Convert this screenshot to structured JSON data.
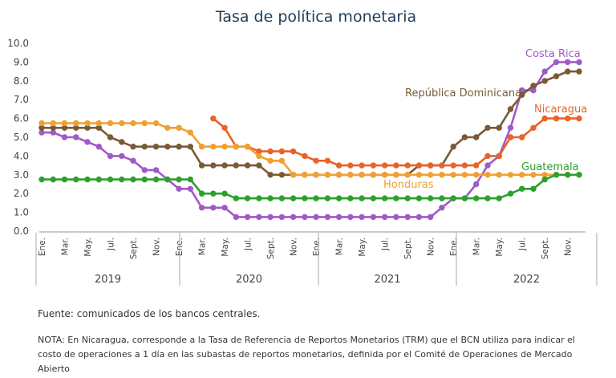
{
  "chart_data": {
    "type": "line",
    "title": "Tasa de política monetaria",
    "ylim": [
      0,
      10
    ],
    "yticks": [
      "0.0",
      "1.0",
      "2.0",
      "3.0",
      "4.0",
      "5.0",
      "6.0",
      "7.0",
      "8.0",
      "9.0",
      "10.0"
    ],
    "x": [
      "Ene.",
      "Feb.",
      "Mar.",
      "Abr.",
      "May.",
      "Jun.",
      "Jul.",
      "Ago.",
      "Sept.",
      "Oct.",
      "Nov.",
      "Dic.",
      "Ene.",
      "Feb.",
      "Mar.",
      "Abr.",
      "May.",
      "Jun.",
      "Jul.",
      "Ago.",
      "Sept.",
      "Oct.",
      "Nov.",
      "Dic.",
      "Ene.",
      "Feb.",
      "Mar.",
      "Abr.",
      "May.",
      "Jun.",
      "Jul.",
      "Ago.",
      "Sept.",
      "Oct.",
      "Nov.",
      "Dic.",
      "Ene.",
      "Feb.",
      "Mar.",
      "Abr.",
      "May.",
      "Jun.",
      "Jul.",
      "Ago.",
      "Sept.",
      "Oct.",
      "Nov.",
      "Dic."
    ],
    "xtick_labels": [
      "Ene.",
      "Mar.",
      "May.",
      "Jul.",
      "Sept.",
      "Nov.",
      "Ene.",
      "Mar.",
      "May.",
      "Jul.",
      "Sept.",
      "Nov.",
      "Ene.",
      "Mar.",
      "May.",
      "Jul.",
      "Sept.",
      "Nov.",
      "Ene.",
      "Mar.",
      "May.",
      "Jul.",
      "Sept.",
      "Nov."
    ],
    "years": [
      "2019",
      "2020",
      "2021",
      "2022"
    ],
    "grid": false,
    "legend": "inline labels at line ends",
    "series": [
      {
        "name": "Costa Rica",
        "color": "#a05ac8",
        "values": [
          5.25,
          5.25,
          5.0,
          5.0,
          4.75,
          4.5,
          4.0,
          4.0,
          3.75,
          3.25,
          3.25,
          2.75,
          2.25,
          2.25,
          1.25,
          1.25,
          1.25,
          0.75,
          0.75,
          0.75,
          0.75,
          0.75,
          0.75,
          0.75,
          0.75,
          0.75,
          0.75,
          0.75,
          0.75,
          0.75,
          0.75,
          0.75,
          0.75,
          0.75,
          0.75,
          1.25,
          1.75,
          1.75,
          2.5,
          3.5,
          4.0,
          5.5,
          7.5,
          7.5,
          8.5,
          9.0,
          9.0,
          9.0
        ]
      },
      {
        "name": "República Dominicana",
        "color": "#7a5a35",
        "values": [
          5.5,
          5.5,
          5.5,
          5.5,
          5.5,
          5.5,
          5.0,
          4.75,
          4.5,
          4.5,
          4.5,
          4.5,
          4.5,
          4.5,
          3.5,
          3.5,
          3.5,
          3.5,
          3.5,
          3.5,
          3.0,
          3.0,
          3.0,
          3.0,
          3.0,
          3.0,
          3.0,
          3.0,
          3.0,
          3.0,
          3.0,
          3.0,
          3.0,
          3.5,
          3.5,
          3.5,
          4.5,
          5.0,
          5.0,
          5.5,
          5.5,
          6.5,
          7.25,
          7.75,
          8.0,
          8.25,
          8.5,
          8.5
        ]
      },
      {
        "name": "Nicaragua",
        "color": "#e8622a",
        "values": [
          null,
          null,
          null,
          null,
          null,
          null,
          null,
          null,
          null,
          null,
          null,
          null,
          null,
          null,
          null,
          6.0,
          5.5,
          4.5,
          4.5,
          4.25,
          4.25,
          4.25,
          4.25,
          4.0,
          3.75,
          3.75,
          3.5,
          3.5,
          3.5,
          3.5,
          3.5,
          3.5,
          3.5,
          3.5,
          3.5,
          3.5,
          3.5,
          3.5,
          3.5,
          4.0,
          4.0,
          5.0,
          5.0,
          5.5,
          6.0,
          6.0,
          6.0,
          6.0
        ]
      },
      {
        "name": "Honduras",
        "color": "#f0a030",
        "values": [
          5.75,
          5.75,
          5.75,
          5.75,
          5.75,
          5.75,
          5.75,
          5.75,
          5.75,
          5.75,
          5.75,
          5.5,
          5.5,
          5.25,
          4.5,
          4.5,
          4.5,
          4.5,
          4.5,
          4.0,
          3.75,
          3.75,
          3.0,
          3.0,
          3.0,
          3.0,
          3.0,
          3.0,
          3.0,
          3.0,
          3.0,
          3.0,
          3.0,
          3.0,
          3.0,
          3.0,
          3.0,
          3.0,
          3.0,
          3.0,
          3.0,
          3.0,
          3.0,
          3.0,
          3.0,
          3.0,
          3.0,
          3.0
        ]
      },
      {
        "name": "Guatemala",
        "color": "#2ca02c",
        "values": [
          2.75,
          2.75,
          2.75,
          2.75,
          2.75,
          2.75,
          2.75,
          2.75,
          2.75,
          2.75,
          2.75,
          2.75,
          2.75,
          2.75,
          2.0,
          2.0,
          2.0,
          1.75,
          1.75,
          1.75,
          1.75,
          1.75,
          1.75,
          1.75,
          1.75,
          1.75,
          1.75,
          1.75,
          1.75,
          1.75,
          1.75,
          1.75,
          1.75,
          1.75,
          1.75,
          1.75,
          1.75,
          1.75,
          1.75,
          1.75,
          1.75,
          2.0,
          2.25,
          2.25,
          2.75,
          3.0,
          3.0,
          3.0
        ]
      }
    ]
  },
  "source": "Fuente: comunicados de los bancos centrales.",
  "note": "NOTA: En Nicaragua, corresponde a la Tasa de Referencia de Reportos Monetarios (TRM) que el BCN utiliza para indicar el costo de operaciones a 1 día en las subastas de reportos monetarios, definida por el Comité de Operaciones de Mercado Abierto"
}
